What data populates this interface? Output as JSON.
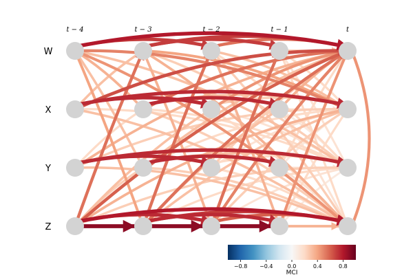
{
  "time_labels": [
    "t − 4",
    "t − 3",
    "t − 2",
    "t − 1",
    "t"
  ],
  "variables": [
    "W",
    "X",
    "Y",
    "Z"
  ],
  "node_color": "#d3d3d3",
  "links": [
    {
      "source": "W",
      "source_lag": 4,
      "target": "W",
      "target_lag": 0,
      "value": 0.8
    },
    {
      "source": "W",
      "source_lag": 3,
      "target": "W",
      "target_lag": 0,
      "value": 0.7
    },
    {
      "source": "W",
      "source_lag": 2,
      "target": "W",
      "target_lag": 0,
      "value": 0.55
    },
    {
      "source": "W",
      "source_lag": 1,
      "target": "W",
      "target_lag": 0,
      "value": 0.3
    },
    {
      "source": "W",
      "source_lag": 4,
      "target": "X",
      "target_lag": 0,
      "value": 0.5
    },
    {
      "source": "W",
      "source_lag": 3,
      "target": "X",
      "target_lag": 0,
      "value": 0.4
    },
    {
      "source": "W",
      "source_lag": 2,
      "target": "X",
      "target_lag": 0,
      "value": 0.3
    },
    {
      "source": "W",
      "source_lag": 1,
      "target": "X",
      "target_lag": 0,
      "value": 0.2
    },
    {
      "source": "W",
      "source_lag": 4,
      "target": "Y",
      "target_lag": 0,
      "value": 0.3
    },
    {
      "source": "W",
      "source_lag": 3,
      "target": "Y",
      "target_lag": 0,
      "value": 0.25
    },
    {
      "source": "W",
      "source_lag": 2,
      "target": "Y",
      "target_lag": 0,
      "value": 0.2
    },
    {
      "source": "W",
      "source_lag": 1,
      "target": "Y",
      "target_lag": 0,
      "value": 0.15
    },
    {
      "source": "W",
      "source_lag": 4,
      "target": "Z",
      "target_lag": 0,
      "value": 0.45
    },
    {
      "source": "W",
      "source_lag": 3,
      "target": "Z",
      "target_lag": 0,
      "value": 0.35
    },
    {
      "source": "W",
      "source_lag": 2,
      "target": "Z",
      "target_lag": 0,
      "value": 0.25
    },
    {
      "source": "W",
      "source_lag": 1,
      "target": "Z",
      "target_lag": 0,
      "value": 0.2
    },
    {
      "source": "X",
      "source_lag": 4,
      "target": "W",
      "target_lag": 0,
      "value": 0.65
    },
    {
      "source": "X",
      "source_lag": 3,
      "target": "W",
      "target_lag": 0,
      "value": 0.55
    },
    {
      "source": "X",
      "source_lag": 2,
      "target": "W",
      "target_lag": 0,
      "value": 0.45
    },
    {
      "source": "X",
      "source_lag": 1,
      "target": "W",
      "target_lag": 0,
      "value": 0.35
    },
    {
      "source": "X",
      "source_lag": 4,
      "target": "X",
      "target_lag": 0,
      "value": 0.75
    },
    {
      "source": "X",
      "source_lag": 3,
      "target": "X",
      "target_lag": 0,
      "value": 0.3
    },
    {
      "source": "X",
      "source_lag": 2,
      "target": "X",
      "target_lag": 0,
      "value": 0.25
    },
    {
      "source": "X",
      "source_lag": 1,
      "target": "X",
      "target_lag": 0,
      "value": 0.15
    },
    {
      "source": "X",
      "source_lag": 4,
      "target": "Y",
      "target_lag": 0,
      "value": 0.2
    },
    {
      "source": "X",
      "source_lag": 3,
      "target": "Y",
      "target_lag": 0,
      "value": 0.2
    },
    {
      "source": "X",
      "source_lag": 2,
      "target": "Y",
      "target_lag": 0,
      "value": 0.15
    },
    {
      "source": "X",
      "source_lag": 1,
      "target": "Y",
      "target_lag": 0,
      "value": 0.1
    },
    {
      "source": "X",
      "source_lag": 4,
      "target": "Z",
      "target_lag": 0,
      "value": 0.3
    },
    {
      "source": "X",
      "source_lag": 3,
      "target": "Z",
      "target_lag": 0,
      "value": 0.25
    },
    {
      "source": "X",
      "source_lag": 2,
      "target": "Z",
      "target_lag": 0,
      "value": 0.2
    },
    {
      "source": "X",
      "source_lag": 1,
      "target": "Z",
      "target_lag": 0,
      "value": 0.15
    },
    {
      "source": "Y",
      "source_lag": 4,
      "target": "W",
      "target_lag": 0,
      "value": 0.35
    },
    {
      "source": "Y",
      "source_lag": 3,
      "target": "W",
      "target_lag": 0,
      "value": 0.3
    },
    {
      "source": "Y",
      "source_lag": 2,
      "target": "W",
      "target_lag": 0,
      "value": 0.25
    },
    {
      "source": "Y",
      "source_lag": 1,
      "target": "W",
      "target_lag": 0,
      "value": 0.2
    },
    {
      "source": "Y",
      "source_lag": 4,
      "target": "X",
      "target_lag": 0,
      "value": 0.25
    },
    {
      "source": "Y",
      "source_lag": 3,
      "target": "X",
      "target_lag": 0,
      "value": 0.2
    },
    {
      "source": "Y",
      "source_lag": 2,
      "target": "X",
      "target_lag": 0,
      "value": 0.15
    },
    {
      "source": "Y",
      "source_lag": 1,
      "target": "X",
      "target_lag": 0,
      "value": 0.1
    },
    {
      "source": "Y",
      "source_lag": 4,
      "target": "Y",
      "target_lag": 0,
      "value": 0.75
    },
    {
      "source": "Y",
      "source_lag": 3,
      "target": "Y",
      "target_lag": 0,
      "value": 0.3
    },
    {
      "source": "Y",
      "source_lag": 2,
      "target": "Y",
      "target_lag": 0,
      "value": 0.2
    },
    {
      "source": "Y",
      "source_lag": 1,
      "target": "Y",
      "target_lag": 0,
      "value": 0.15
    },
    {
      "source": "Y",
      "source_lag": 4,
      "target": "Z",
      "target_lag": 0,
      "value": 0.3
    },
    {
      "source": "Y",
      "source_lag": 3,
      "target": "Z",
      "target_lag": 0,
      "value": 0.25
    },
    {
      "source": "Y",
      "source_lag": 2,
      "target": "Z",
      "target_lag": 0,
      "value": 0.2
    },
    {
      "source": "Y",
      "source_lag": 1,
      "target": "Z",
      "target_lag": 0,
      "value": 0.15
    },
    {
      "source": "Z",
      "source_lag": 4,
      "target": "W",
      "target_lag": 0,
      "value": 0.6
    },
    {
      "source": "Z",
      "source_lag": 3,
      "target": "W",
      "target_lag": 0,
      "value": 0.55
    },
    {
      "source": "Z",
      "source_lag": 2,
      "target": "W",
      "target_lag": 0,
      "value": 0.5
    },
    {
      "source": "Z",
      "source_lag": 1,
      "target": "W",
      "target_lag": 0,
      "value": 0.45
    },
    {
      "source": "Z",
      "source_lag": 4,
      "target": "X",
      "target_lag": 0,
      "value": 0.35
    },
    {
      "source": "Z",
      "source_lag": 3,
      "target": "X",
      "target_lag": 0,
      "value": 0.3
    },
    {
      "source": "Z",
      "source_lag": 2,
      "target": "X",
      "target_lag": 0,
      "value": 0.25
    },
    {
      "source": "Z",
      "source_lag": 1,
      "target": "X",
      "target_lag": 0,
      "value": 0.2
    },
    {
      "source": "Z",
      "source_lag": 4,
      "target": "Y",
      "target_lag": 0,
      "value": 0.25
    },
    {
      "source": "Z",
      "source_lag": 3,
      "target": "Y",
      "target_lag": 0,
      "value": 0.2
    },
    {
      "source": "Z",
      "source_lag": 2,
      "target": "Y",
      "target_lag": 0,
      "value": 0.15
    },
    {
      "source": "Z",
      "source_lag": 1,
      "target": "Y",
      "target_lag": 0,
      "value": 0.1
    },
    {
      "source": "Z",
      "source_lag": 4,
      "target": "Z",
      "target_lag": 0,
      "value": 0.8
    },
    {
      "source": "Z",
      "source_lag": 3,
      "target": "Z",
      "target_lag": 0,
      "value": 0.7
    },
    {
      "source": "Z",
      "source_lag": 2,
      "target": "Z",
      "target_lag": 0,
      "value": 0.6
    },
    {
      "source": "Z",
      "source_lag": 1,
      "target": "Z",
      "target_lag": 0,
      "value": 0.35
    },
    {
      "source": "W",
      "source_lag": 4,
      "target": "X",
      "target_lag": 3,
      "value": 0.35
    },
    {
      "source": "W",
      "source_lag": 4,
      "target": "Y",
      "target_lag": 3,
      "value": 0.3
    },
    {
      "source": "W",
      "source_lag": 4,
      "target": "Z",
      "target_lag": 3,
      "value": 0.4
    },
    {
      "source": "W",
      "source_lag": 4,
      "target": "W",
      "target_lag": 2,
      "value": 0.7
    },
    {
      "source": "W",
      "source_lag": 3,
      "target": "W",
      "target_lag": 1,
      "value": 0.7
    },
    {
      "source": "W",
      "source_lag": 3,
      "target": "Z",
      "target_lag": 2,
      "value": 0.35
    },
    {
      "source": "W",
      "source_lag": 2,
      "target": "Z",
      "target_lag": 1,
      "value": 0.35
    },
    {
      "source": "X",
      "source_lag": 4,
      "target": "X",
      "target_lag": 2,
      "value": 0.75
    },
    {
      "source": "X",
      "source_lag": 3,
      "target": "X",
      "target_lag": 1,
      "value": 0.75
    },
    {
      "source": "X",
      "source_lag": 4,
      "target": "W",
      "target_lag": 3,
      "value": 0.3
    },
    {
      "source": "Y",
      "source_lag": 4,
      "target": "Y",
      "target_lag": 2,
      "value": 0.75
    },
    {
      "source": "Y",
      "source_lag": 3,
      "target": "Y",
      "target_lag": 1,
      "value": 0.75
    },
    {
      "source": "Y",
      "source_lag": 4,
      "target": "X",
      "target_lag": 3,
      "value": 0.2
    },
    {
      "source": "Z",
      "source_lag": 4,
      "target": "W",
      "target_lag": 3,
      "value": 0.55
    },
    {
      "source": "Z",
      "source_lag": 3,
      "target": "W",
      "target_lag": 2,
      "value": 0.55
    },
    {
      "source": "Z",
      "source_lag": 2,
      "target": "W",
      "target_lag": 1,
      "value": 0.55
    },
    {
      "source": "Z",
      "source_lag": 4,
      "target": "X",
      "target_lag": 2,
      "value": 0.3
    },
    {
      "source": "Z",
      "source_lag": 3,
      "target": "X",
      "target_lag": 1,
      "value": 0.3
    },
    {
      "source": "Z",
      "source_lag": 4,
      "target": "Z",
      "target_lag": 3,
      "value": 0.9
    },
    {
      "source": "Z",
      "source_lag": 3,
      "target": "Z",
      "target_lag": 2,
      "value": 0.9
    },
    {
      "source": "Z",
      "source_lag": 2,
      "target": "Z",
      "target_lag": 1,
      "value": 0.9
    },
    {
      "source": "Z",
      "source_lag": 4,
      "target": "Z",
      "target_lag": 2,
      "value": 0.75
    },
    {
      "source": "Z",
      "source_lag": 3,
      "target": "Z",
      "target_lag": 1,
      "value": 0.75
    },
    {
      "source": "Z",
      "source_lag": 4,
      "target": "Y",
      "target_lag": 3,
      "value": 0.25
    }
  ],
  "colorbar": {
    "min": -1.0,
    "max": 1.0,
    "ticks": [
      -0.8,
      -0.4,
      0.0,
      0.4,
      0.8
    ],
    "tick_labels": [
      "−0.8",
      "−0.4",
      "0.0",
      "0.4",
      "0.8"
    ],
    "colormap": "RdBu_r",
    "label": "MCI"
  }
}
